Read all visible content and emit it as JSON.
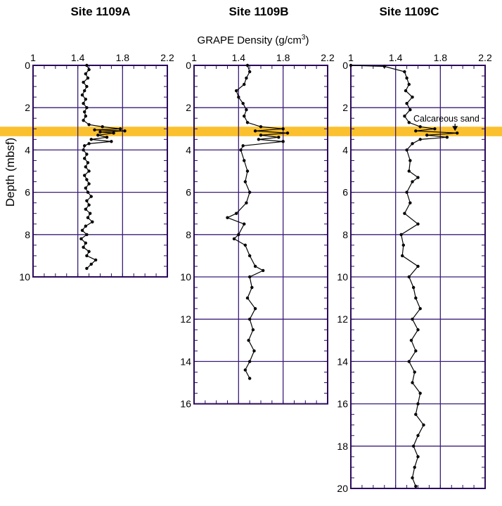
{
  "chart_data": {
    "type": "scatter",
    "shared_x_label": "GRAPE Density (g/cm",
    "shared_x_label_sup": "3",
    "shared_x_label_tail": ")",
    "ylabel": "Depth (mbsf)",
    "x_ticks": [
      1,
      1.4,
      1.8,
      2.2
    ],
    "x_tick_labels": [
      "1",
      "1.4",
      "1.8",
      "2.2"
    ],
    "xlim": [
      1,
      2.2
    ],
    "grid": true,
    "highlight_band": {
      "depth_range": [
        2.9,
        3.35
      ],
      "color": "#fbc02d"
    },
    "colors": {
      "frame": "#2a0a5c",
      "grid": "#3b1f7a",
      "data": "#000000",
      "band": "#fbc02d"
    },
    "panels": [
      {
        "title": "Site 1109A",
        "ylim": [
          0,
          10
        ],
        "y_ticks": [
          0,
          2,
          4,
          6,
          8,
          10
        ],
        "y_tick_labels": [
          "0",
          "2",
          "4",
          "6",
          "8",
          "10"
        ],
        "series": [
          {
            "depth": [
              0.0,
              0.2,
              0.4,
              0.6,
              0.8,
              1.0,
              1.2,
              1.4,
              1.6,
              1.8,
              2.0,
              2.2,
              2.4,
              2.6,
              2.8,
              2.9,
              3.0,
              3.05,
              3.1,
              3.15,
              3.2,
              3.3,
              3.4,
              3.5,
              3.6,
              3.7,
              3.8,
              4.0,
              4.2,
              4.4,
              4.6,
              4.8,
              5.0,
              5.2,
              5.4,
              5.6,
              5.8,
              6.0,
              6.2,
              6.4,
              6.6,
              6.8,
              7.0,
              7.2,
              7.4,
              7.6,
              7.8,
              8.0,
              8.2,
              8.4,
              8.6,
              8.8,
              9.0,
              9.2,
              9.4,
              9.6
            ],
            "density": [
              1.48,
              1.5,
              1.47,
              1.49,
              1.45,
              1.48,
              1.46,
              1.44,
              1.47,
              1.45,
              1.48,
              1.46,
              1.47,
              1.45,
              1.5,
              1.62,
              1.78,
              1.55,
              1.82,
              1.6,
              1.72,
              1.58,
              1.66,
              1.52,
              1.7,
              1.5,
              1.46,
              1.45,
              1.48,
              1.46,
              1.49,
              1.47,
              1.5,
              1.46,
              1.48,
              1.5,
              1.47,
              1.49,
              1.52,
              1.48,
              1.5,
              1.47,
              1.51,
              1.49,
              1.53,
              1.47,
              1.44,
              1.48,
              1.43,
              1.47,
              1.45,
              1.5,
              1.48,
              1.56,
              1.52,
              1.48
            ]
          }
        ]
      },
      {
        "title": "Site 1109B",
        "ylim": [
          0,
          16
        ],
        "y_ticks": [
          0,
          2,
          4,
          6,
          8,
          10,
          12,
          14,
          16
        ],
        "y_tick_labels": [
          "0",
          "2",
          "4",
          "6",
          "8",
          "10",
          "12",
          "14",
          "16"
        ],
        "series": [
          {
            "depth": [
              0.0,
              0.3,
              0.6,
              0.9,
              1.2,
              1.5,
              1.8,
              2.1,
              2.4,
              2.7,
              2.9,
              3.0,
              3.1,
              3.2,
              3.3,
              3.4,
              3.5,
              3.6,
              3.8,
              4.0,
              4.5,
              5.0,
              5.5,
              6.0,
              6.5,
              7.0,
              7.2,
              7.5,
              8.0,
              8.2,
              8.5,
              9.0,
              9.5,
              9.7,
              10.0,
              10.5,
              11.0,
              11.5,
              12.0,
              12.5,
              13.0,
              13.5,
              14.0,
              14.4,
              14.8
            ],
            "density": [
              1.48,
              1.5,
              1.47,
              1.45,
              1.38,
              1.4,
              1.44,
              1.47,
              1.45,
              1.48,
              1.6,
              1.8,
              1.55,
              1.84,
              1.6,
              1.76,
              1.58,
              1.8,
              1.44,
              1.42,
              1.45,
              1.48,
              1.46,
              1.5,
              1.47,
              1.38,
              1.3,
              1.45,
              1.4,
              1.36,
              1.46,
              1.5,
              1.55,
              1.62,
              1.5,
              1.52,
              1.48,
              1.55,
              1.5,
              1.53,
              1.49,
              1.54,
              1.5,
              1.46,
              1.5
            ]
          }
        ]
      },
      {
        "title": "Site 1109C",
        "ylim": [
          0,
          20
        ],
        "y_ticks": [
          0,
          2,
          4,
          6,
          8,
          10,
          12,
          14,
          16,
          18,
          20
        ],
        "y_tick_labels": [
          "0",
          "2",
          "4",
          "6",
          "8",
          "10",
          "12",
          "14",
          "16",
          "18",
          "20"
        ],
        "annotation": {
          "text": "Calcareous sand",
          "depth": 3.2,
          "density": 1.95
        },
        "series": [
          {
            "depth": [
              0.0,
              0.05,
              0.3,
              0.6,
              0.9,
              1.2,
              1.5,
              1.8,
              2.1,
              2.4,
              2.7,
              2.9,
              3.0,
              3.1,
              3.2,
              3.3,
              3.4,
              3.5,
              3.7,
              4.0,
              4.5,
              5.0,
              5.3,
              5.5,
              6.0,
              6.5,
              7.0,
              7.5,
              8.0,
              8.5,
              9.0,
              9.5,
              10.0,
              10.5,
              11.0,
              11.5,
              12.0,
              12.5,
              13.0,
              13.5,
              14.0,
              14.5,
              15.0,
              15.5,
              16.0,
              16.5,
              17.0,
              17.5,
              18.0,
              18.5,
              19.0,
              19.5,
              19.9
            ],
            "density": [
              1.0,
              1.3,
              1.48,
              1.5,
              1.52,
              1.49,
              1.55,
              1.5,
              1.53,
              1.48,
              1.52,
              1.62,
              1.75,
              1.58,
              1.95,
              1.68,
              1.86,
              1.62,
              1.55,
              1.5,
              1.53,
              1.52,
              1.6,
              1.55,
              1.5,
              1.53,
              1.48,
              1.6,
              1.45,
              1.47,
              1.46,
              1.6,
              1.52,
              1.56,
              1.58,
              1.62,
              1.55,
              1.6,
              1.54,
              1.58,
              1.52,
              1.57,
              1.55,
              1.62,
              1.6,
              1.58,
              1.65,
              1.6,
              1.56,
              1.6,
              1.57,
              1.55,
              1.58
            ]
          }
        ]
      }
    ]
  }
}
